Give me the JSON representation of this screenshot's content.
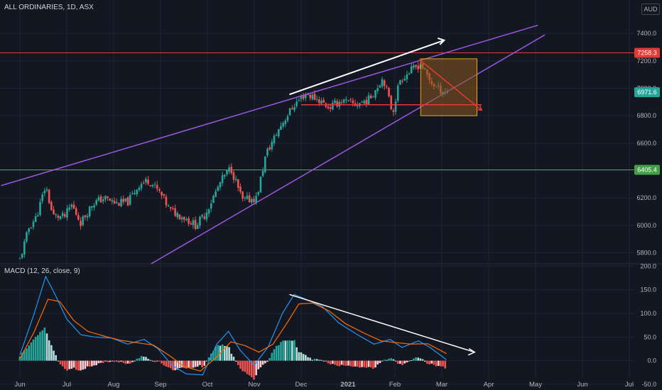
{
  "header": {
    "symbol": "ALL ORDINARIES, 1D, ASX",
    "currency": "AUD",
    "indicator": "MACD (12, 26, close, 9)"
  },
  "colors": {
    "background": "#131722",
    "up": "#26a69a",
    "down": "#ef5350",
    "channel": "#9c57e0",
    "resistance": "#e53935",
    "support": "#43a047",
    "macd_line": "#2196f3",
    "signal_line": "#ff6d00",
    "box_fill": "#8a5a1e",
    "box_stroke": "#f6a21a"
  },
  "chart_data": [
    {
      "type": "candlestick",
      "x_axis_labels": [
        "Jun",
        "Jul",
        "Aug",
        "Sep",
        "Oct",
        "Nov",
        "Dec",
        "2021",
        "Feb",
        "Mar",
        "Apr",
        "May",
        "Jun",
        "Jul"
      ],
      "y_ticks": [
        5800.0,
        6000.0,
        6200.0,
        6400.0,
        6600.0,
        6800.0,
        7000.0,
        7200.0,
        7400.0
      ],
      "ylim": [
        5720,
        7530
      ],
      "keypoints": [
        {
          "month": 0.0,
          "close": 5750
        },
        {
          "month": 0.2,
          "close": 5990
        },
        {
          "month": 0.35,
          "close": 6060
        },
        {
          "month": 0.55,
          "close": 6290
        },
        {
          "month": 0.7,
          "close": 6070
        },
        {
          "month": 0.95,
          "close": 6060
        },
        {
          "month": 1.1,
          "close": 6150
        },
        {
          "month": 1.3,
          "close": 6020
        },
        {
          "month": 1.55,
          "close": 6160
        },
        {
          "month": 1.8,
          "close": 6200
        },
        {
          "month": 2.05,
          "close": 6160
        },
        {
          "month": 2.3,
          "close": 6170
        },
        {
          "month": 2.55,
          "close": 6300
        },
        {
          "month": 2.75,
          "close": 6330
        },
        {
          "month": 3.0,
          "close": 6230
        },
        {
          "month": 3.2,
          "close": 6110
        },
        {
          "month": 3.5,
          "close": 6060
        },
        {
          "month": 3.75,
          "close": 6000
        },
        {
          "month": 3.95,
          "close": 6080
        },
        {
          "month": 4.3,
          "close": 6330
        },
        {
          "month": 4.5,
          "close": 6420
        },
        {
          "month": 4.75,
          "close": 6180
        },
        {
          "month": 5.05,
          "close": 6200
        },
        {
          "month": 5.25,
          "close": 6520
        },
        {
          "month": 5.55,
          "close": 6720
        },
        {
          "month": 5.85,
          "close": 6880
        },
        {
          "month": 6.1,
          "close": 6960
        },
        {
          "month": 6.35,
          "close": 6920
        },
        {
          "month": 6.6,
          "close": 6860
        },
        {
          "month": 6.85,
          "close": 6910
        },
        {
          "month": 7.15,
          "close": 6880
        },
        {
          "month": 7.45,
          "close": 6920
        },
        {
          "month": 7.75,
          "close": 7080
        },
        {
          "month": 7.95,
          "close": 6820
        },
        {
          "month": 8.1,
          "close": 7060
        },
        {
          "month": 8.35,
          "close": 7130
        },
        {
          "month": 8.55,
          "close": 7180
        },
        {
          "month": 8.75,
          "close": 7050
        },
        {
          "month": 8.95,
          "close": 6990
        },
        {
          "month": 9.15,
          "close": 6972
        }
      ],
      "labeled_levels": [
        {
          "label": "7258.3",
          "value": 7258.3,
          "color": "#e53935"
        },
        {
          "label": "6971.6",
          "value": 6971.6,
          "color": "#26a69a"
        },
        {
          "label": "6405.4",
          "value": 6405.4,
          "color": "#43a047"
        }
      ],
      "channel_upper": [
        {
          "month": -0.4,
          "value": 6290
        },
        {
          "month": 11.05,
          "value": 7460
        }
      ],
      "channel_lower": [
        {
          "month": 2.8,
          "value": 5720
        },
        {
          "month": 11.2,
          "value": 7390
        }
      ],
      "target_box": {
        "month": [
          8.55,
          9.75
        ],
        "value": [
          6800,
          7215
        ]
      },
      "trend_arrow": {
        "month": [
          5.75,
          9.05
        ],
        "value": [
          6955,
          7350
        ]
      }
    },
    {
      "type": "line",
      "indicator": "MACD (12, 26, close, 9)",
      "y_ticks": [
        -50.0,
        0.0,
        50.0,
        100.0,
        150.0,
        200.0
      ],
      "ylim": [
        -62,
        205
      ],
      "macd": [
        {
          "month": 0.0,
          "value": 12
        },
        {
          "month": 0.3,
          "value": 98
        },
        {
          "month": 0.55,
          "value": 178
        },
        {
          "month": 0.75,
          "value": 140
        },
        {
          "month": 1.0,
          "value": 88
        },
        {
          "month": 1.3,
          "value": 55
        },
        {
          "month": 1.6,
          "value": 50
        },
        {
          "month": 1.95,
          "value": 48
        },
        {
          "month": 2.3,
          "value": 35
        },
        {
          "month": 2.65,
          "value": 45
        },
        {
          "month": 2.95,
          "value": 25
        },
        {
          "month": 3.25,
          "value": -10
        },
        {
          "month": 3.55,
          "value": -28
        },
        {
          "month": 3.9,
          "value": -30
        },
        {
          "month": 4.2,
          "value": 35
        },
        {
          "month": 4.45,
          "value": 62
        },
        {
          "month": 4.7,
          "value": 22
        },
        {
          "month": 5.0,
          "value": -10
        },
        {
          "month": 5.3,
          "value": 30
        },
        {
          "month": 5.6,
          "value": 100
        },
        {
          "month": 5.85,
          "value": 140
        },
        {
          "month": 6.1,
          "value": 130
        },
        {
          "month": 6.45,
          "value": 115
        },
        {
          "month": 6.8,
          "value": 80
        },
        {
          "month": 7.2,
          "value": 55
        },
        {
          "month": 7.55,
          "value": 35
        },
        {
          "month": 7.9,
          "value": 45
        },
        {
          "month": 8.15,
          "value": 28
        },
        {
          "month": 8.5,
          "value": 42
        },
        {
          "month": 8.75,
          "value": 28
        },
        {
          "month": 9.1,
          "value": 2
        }
      ],
      "signal": [
        {
          "month": 0.0,
          "value": 4
        },
        {
          "month": 0.3,
          "value": 60
        },
        {
          "month": 0.6,
          "value": 130
        },
        {
          "month": 0.85,
          "value": 125
        },
        {
          "month": 1.15,
          "value": 85
        },
        {
          "month": 1.45,
          "value": 62
        },
        {
          "month": 1.8,
          "value": 52
        },
        {
          "month": 2.15,
          "value": 43
        },
        {
          "month": 2.5,
          "value": 38
        },
        {
          "month": 2.85,
          "value": 33
        },
        {
          "month": 3.2,
          "value": 10
        },
        {
          "month": 3.5,
          "value": -12
        },
        {
          "month": 3.85,
          "value": -22
        },
        {
          "month": 4.2,
          "value": 8
        },
        {
          "month": 4.5,
          "value": 40
        },
        {
          "month": 4.8,
          "value": 32
        },
        {
          "month": 5.1,
          "value": 18
        },
        {
          "month": 5.4,
          "value": 35
        },
        {
          "month": 5.7,
          "value": 80
        },
        {
          "month": 5.95,
          "value": 120
        },
        {
          "month": 6.25,
          "value": 122
        },
        {
          "month": 6.6,
          "value": 105
        },
        {
          "month": 6.95,
          "value": 78
        },
        {
          "month": 7.35,
          "value": 58
        },
        {
          "month": 7.7,
          "value": 42
        },
        {
          "month": 8.05,
          "value": 38
        },
        {
          "month": 8.35,
          "value": 35
        },
        {
          "month": 8.7,
          "value": 36
        },
        {
          "month": 9.1,
          "value": 15
        }
      ],
      "divergence_arrow": {
        "month": [
          5.75,
          9.7
        ],
        "value": [
          140,
          18
        ]
      }
    }
  ]
}
